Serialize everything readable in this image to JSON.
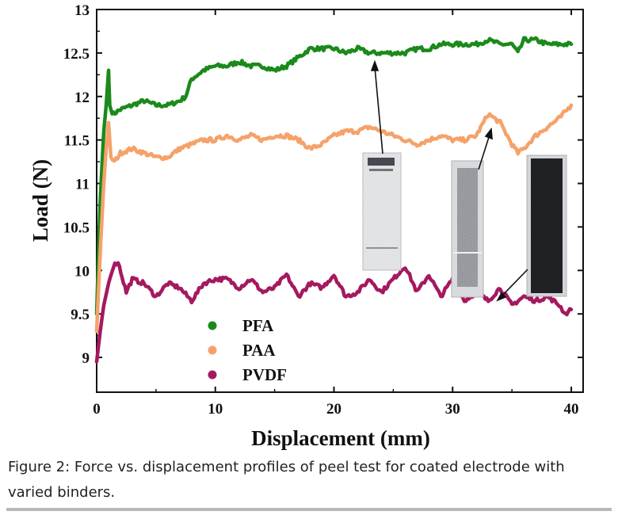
{
  "caption": "Figure 2: Force vs. displacement profiles of peel test for coated electrode with varied binders.",
  "chart_data": {
    "type": "line",
    "xlabel": "Displacement (mm)",
    "ylabel": "Load (N)",
    "xlim": [
      0,
      41
    ],
    "ylim": [
      8.6,
      13
    ],
    "x_ticks": [
      "0",
      "10",
      "20",
      "30",
      "40"
    ],
    "y_ticks": [
      "9",
      "9.5",
      "10",
      "10.5",
      "11",
      "11.5",
      "12",
      "12.5",
      "13"
    ],
    "legend_position": "bottom-left",
    "series": [
      {
        "name": "PFA",
        "color": "#1a8a1a",
        "x": [
          0,
          0.3,
          0.6,
          0.8,
          1.0,
          1.1,
          1.2,
          1.4,
          2,
          3,
          4,
          5,
          6,
          7,
          7.5,
          8,
          9,
          10,
          11,
          12,
          13,
          14,
          15,
          16,
          17,
          18,
          19,
          20,
          21,
          22,
          23,
          24,
          25,
          26,
          27,
          28,
          29,
          30,
          31,
          32,
          33,
          34,
          35,
          35.5,
          36,
          37,
          38,
          39,
          40
        ],
        "values": [
          9.5,
          10.8,
          11.6,
          11.9,
          12.3,
          11.9,
          11.85,
          11.8,
          11.85,
          11.9,
          11.95,
          11.9,
          11.9,
          11.95,
          12.0,
          12.2,
          12.3,
          12.35,
          12.35,
          12.4,
          12.35,
          12.35,
          12.3,
          12.35,
          12.45,
          12.55,
          12.55,
          12.55,
          12.5,
          12.55,
          12.5,
          12.5,
          12.5,
          12.5,
          12.55,
          12.55,
          12.6,
          12.6,
          12.6,
          12.6,
          12.65,
          12.6,
          12.6,
          12.5,
          12.65,
          12.65,
          12.6,
          12.6,
          12.6
        ]
      },
      {
        "name": "PAA",
        "color": "#f5a26a",
        "x": [
          0,
          0.3,
          0.6,
          0.8,
          1.0,
          1.2,
          1.5,
          2,
          3,
          4,
          5,
          6,
          7,
          8,
          9,
          10,
          11,
          12,
          13,
          14,
          15,
          16,
          17,
          18,
          19,
          20,
          21,
          22,
          23,
          24,
          25,
          26,
          27,
          28,
          29,
          30,
          31,
          32,
          33,
          34,
          35,
          35.5,
          36,
          37,
          38,
          39,
          40
        ],
        "values": [
          9.3,
          10.2,
          11.0,
          11.4,
          11.7,
          11.3,
          11.25,
          11.35,
          11.4,
          11.35,
          11.3,
          11.3,
          11.4,
          11.45,
          11.5,
          11.5,
          11.55,
          11.5,
          11.55,
          11.5,
          11.55,
          11.55,
          11.5,
          11.4,
          11.45,
          11.55,
          11.6,
          11.6,
          11.65,
          11.6,
          11.55,
          11.5,
          11.45,
          11.5,
          11.55,
          11.5,
          11.5,
          11.55,
          11.8,
          11.7,
          11.45,
          11.35,
          11.4,
          11.55,
          11.65,
          11.75,
          11.9
        ]
      },
      {
        "name": "PVDF",
        "color": "#a4195f",
        "x": [
          0,
          0.3,
          0.6,
          1.0,
          1.4,
          1.8,
          2.5,
          3,
          4,
          5,
          6,
          7,
          8,
          9,
          10,
          11,
          12,
          13,
          14,
          15,
          16,
          17,
          18,
          19,
          20,
          21,
          22,
          23,
          24,
          25,
          26,
          27,
          28,
          29,
          30,
          31,
          32,
          33,
          34,
          35,
          36,
          37,
          38,
          39,
          39.5,
          40
        ],
        "values": [
          8.95,
          9.3,
          9.6,
          9.85,
          10.05,
          10.1,
          9.75,
          9.9,
          9.85,
          9.7,
          9.85,
          9.8,
          9.65,
          9.85,
          9.9,
          9.9,
          9.8,
          9.9,
          9.75,
          9.8,
          9.95,
          9.7,
          9.85,
          9.8,
          9.95,
          9.7,
          9.75,
          9.9,
          9.75,
          9.9,
          10.05,
          9.75,
          9.95,
          9.7,
          9.9,
          9.65,
          9.75,
          9.65,
          9.8,
          9.6,
          9.7,
          9.65,
          9.7,
          9.6,
          9.5,
          9.55
        ]
      }
    ]
  }
}
